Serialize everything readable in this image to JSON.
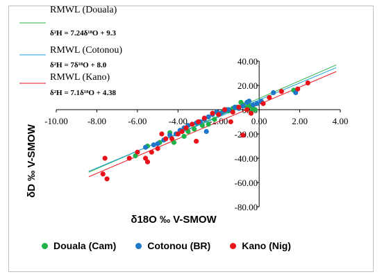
{
  "colors": {
    "douala": "#1fb24a",
    "cotonou": "#1f77c8",
    "kano": "#e8131a",
    "line_douala": "#2db34a",
    "line_cotonou": "#1a9fd9",
    "line_kano": "#e8131a",
    "axis": "#000000",
    "frame": "#bfbfbf"
  },
  "chart_data": {
    "type": "scatter",
    "title": "",
    "xlabel": "δ18O ‰ V-SMOW",
    "ylabel": "δD ‰ V-SMOW",
    "xlim": [
      -10,
      4
    ],
    "ylim": [
      -80,
      40
    ],
    "x_ticks": [
      "-10.00",
      "-8.00",
      "-6.00",
      "-4.00",
      "-2.00",
      "0.00",
      "2.00",
      "4.00"
    ],
    "y_ticks": [
      "-80.00",
      "-60.00",
      "-40.00",
      "-20.00",
      "0.00",
      "20.00",
      "40.00"
    ],
    "grid": false,
    "legend_position": "bottom",
    "lines": [
      {
        "name": "RMWL (Douala)",
        "equation": "δ²H = 7.24δ¹⁸O + 9.3",
        "slope": 7.24,
        "intercept": 9.3
      },
      {
        "name": "RMWL (Cotonou)",
        "equation": "δ²H = 7δ¹⁸O + 8.0",
        "slope": 7.0,
        "intercept": 8.0
      },
      {
        "name": "RMWL (Kano)",
        "equation": "δ²H = 7.1δ¹⁸O + 4.38",
        "slope": 7.1,
        "intercept": 4.38
      }
    ],
    "line_x_range": [
      -8.4,
      3.8
    ],
    "series": [
      {
        "name": "Douala (Cam)",
        "points": [
          [
            -6.1,
            -38
          ],
          [
            -5.5,
            -30
          ],
          [
            -4.9,
            -27
          ],
          [
            -4.4,
            -19
          ],
          [
            -4.2,
            -27
          ],
          [
            -3.7,
            -22
          ],
          [
            -3.5,
            -18
          ],
          [
            -3.2,
            -16
          ],
          [
            -2.8,
            -13
          ],
          [
            -2.5,
            -12
          ],
          [
            -2.2,
            -8
          ],
          [
            -2.0,
            -4
          ],
          [
            -1.8,
            -2
          ],
          [
            -1.6,
            0
          ],
          [
            -1.5,
            -1
          ],
          [
            -1.3,
            1
          ],
          [
            -1.1,
            2
          ],
          [
            -0.9,
            6
          ],
          [
            -0.8,
            4
          ],
          [
            -0.6,
            2
          ],
          [
            -0.5,
            3
          ],
          [
            -0.4,
            -2
          ],
          [
            -0.3,
            1
          ],
          [
            -0.2,
            0
          ],
          [
            1.7,
            16
          ]
        ]
      },
      {
        "name": "Cotonou (BR)",
        "points": [
          [
            -5.6,
            -31
          ],
          [
            -5.2,
            -29
          ],
          [
            -5.0,
            -28
          ],
          [
            -4.7,
            -25
          ],
          [
            -4.4,
            -21
          ],
          [
            -4.1,
            -20
          ],
          [
            -3.9,
            -17
          ],
          [
            -3.7,
            -15
          ],
          [
            -3.5,
            -13
          ],
          [
            -3.3,
            -12
          ],
          [
            -3.1,
            -11
          ],
          [
            -2.9,
            -10
          ],
          [
            -2.7,
            -8
          ],
          [
            -2.5,
            -6
          ],
          [
            -2.3,
            -4
          ],
          [
            -2.1,
            -2
          ],
          [
            -1.9,
            -3
          ],
          [
            -1.7,
            -1
          ],
          [
            -1.5,
            0
          ],
          [
            -1.2,
            2
          ],
          [
            -1.0,
            1
          ],
          [
            -0.8,
            3
          ],
          [
            -0.6,
            6
          ],
          [
            -0.5,
            7
          ],
          [
            -0.3,
            4
          ],
          [
            -0.1,
            5
          ],
          [
            0.1,
            7
          ],
          [
            0.7,
            14
          ],
          [
            1.8,
            14
          ],
          [
            -2.6,
            -18
          ]
        ]
      },
      {
        "name": "Kano (Nig)",
        "points": [
          [
            -7.7,
            -53
          ],
          [
            -7.5,
            -57
          ],
          [
            -7.6,
            -40
          ],
          [
            -6.4,
            -40
          ],
          [
            -6.0,
            -35
          ],
          [
            -5.6,
            -40
          ],
          [
            -5.5,
            -43
          ],
          [
            -5.3,
            -35
          ],
          [
            -5.0,
            -32
          ],
          [
            -4.8,
            -20
          ],
          [
            -4.6,
            -24
          ],
          [
            -4.3,
            -24
          ],
          [
            -4.0,
            -20
          ],
          [
            -3.8,
            -18
          ],
          [
            -3.6,
            -15
          ],
          [
            -3.3,
            -12
          ],
          [
            -3.0,
            -10
          ],
          [
            -2.7,
            -7
          ],
          [
            -2.3,
            -3
          ],
          [
            -2.0,
            -4
          ],
          [
            -1.7,
            0
          ],
          [
            -1.3,
            -2
          ],
          [
            -1.0,
            2
          ],
          [
            -0.8,
            -21
          ],
          [
            -0.6,
            0
          ],
          [
            0.2,
            5
          ],
          [
            0.5,
            10
          ],
          [
            1.1,
            15
          ],
          [
            1.9,
            17
          ],
          [
            2.4,
            22
          ],
          [
            -3.1,
            -26
          ],
          [
            -1.4,
            -10
          ],
          [
            -0.4,
            -3
          ]
        ]
      }
    ]
  }
}
